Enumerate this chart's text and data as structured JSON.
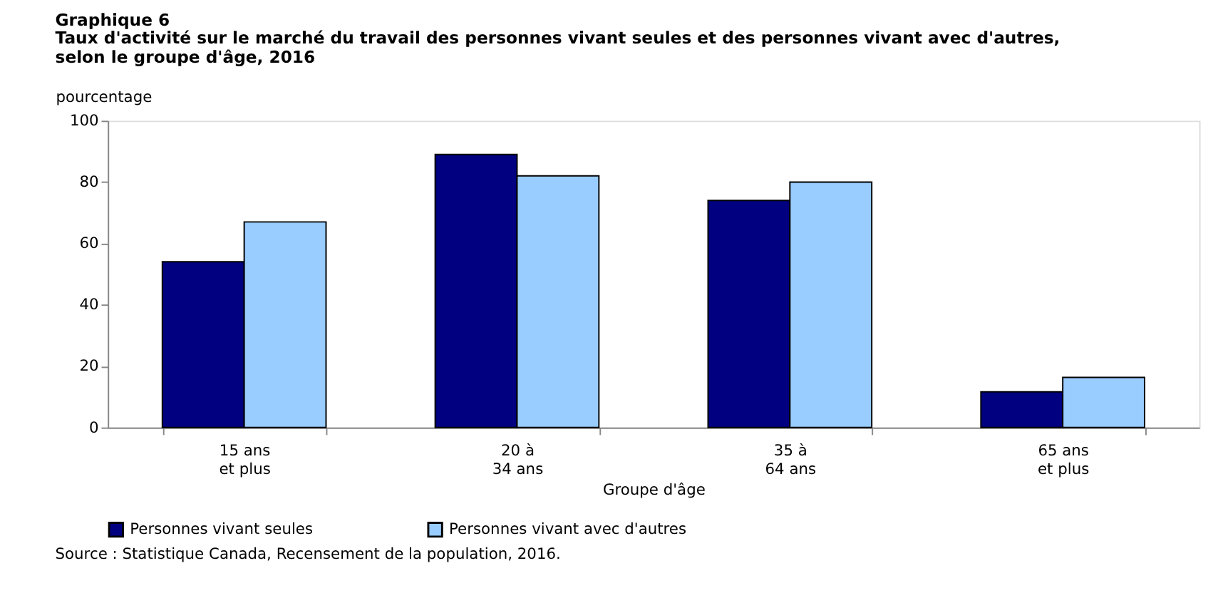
{
  "chart_data": {
    "type": "bar",
    "title": "Graphique  6",
    "subtitle": "Taux d'activité sur le marché du travail des personnes vivant seules et des personnes vivant avec d'autres, selon le groupe d'âge, 2016",
    "ylabel": "pourcentage",
    "xlabel": "Groupe d'âge",
    "categories": [
      "15 ans\net plus",
      "20 à\n34 ans",
      "35 à\n64 ans",
      "65 ans\net plus"
    ],
    "series": [
      {
        "name": "Personnes vivant seules",
        "color": "#000080",
        "values": [
          54,
          89,
          74,
          11.6
        ]
      },
      {
        "name": "Personnes vivant avec d'autres",
        "color": "#99ccff",
        "values": [
          67,
          82,
          80,
          16.3
        ]
      }
    ],
    "ylim": [
      0,
      100
    ],
    "yticks": [
      0,
      20,
      40,
      60,
      80,
      100
    ],
    "grid": false,
    "legend": "bottom",
    "annotations": [
      "Source : Statistique Canada, Recensement de la population, 2016."
    ]
  }
}
